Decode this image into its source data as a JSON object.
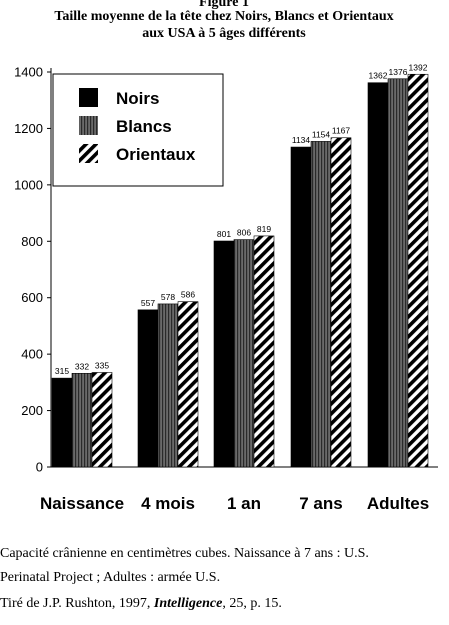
{
  "title_line1": "Figure 1",
  "title_line2": "Taille moyenne de la tête chez Noirs, Blancs et Orientaux",
  "title_line3": "aux USA à 5 âges différents",
  "caption_line1": "Capacité crânienne en centimètres cubes. Naissance à 7 ans : U.S.",
  "caption_line2": "Perinatal Project ; Adultes : armée U.S.",
  "caption_line3_prefix": "Tiré de J.P. Rushton, 1997, ",
  "caption_line3_journal": "Intelligence",
  "caption_line3_suffix": ", 25, p. 15.",
  "chart_data": {
    "type": "bar",
    "categories": [
      "Naissance",
      "4 mois",
      "1 an",
      "7 ans",
      "Adultes"
    ],
    "series": [
      {
        "name": "Noirs",
        "values": [
          315,
          557,
          801,
          1134,
          1362
        ],
        "color": "#000000",
        "pattern": "solid"
      },
      {
        "name": "Blancs",
        "values": [
          332,
          578,
          806,
          1154,
          1376
        ],
        "color": "#555555",
        "pattern": "vertical-stripes"
      },
      {
        "name": "Orientaux",
        "values": [
          335,
          586,
          819,
          1167,
          1392
        ],
        "color": "#000000",
        "pattern": "diagonal-hatch"
      }
    ],
    "y_ticks": [
      "0",
      "200",
      "400",
      "600",
      "800",
      "1000",
      "1200",
      "1400"
    ],
    "ylim": [
      0,
      1400
    ],
    "grid": false,
    "legend_position": "top-left"
  }
}
